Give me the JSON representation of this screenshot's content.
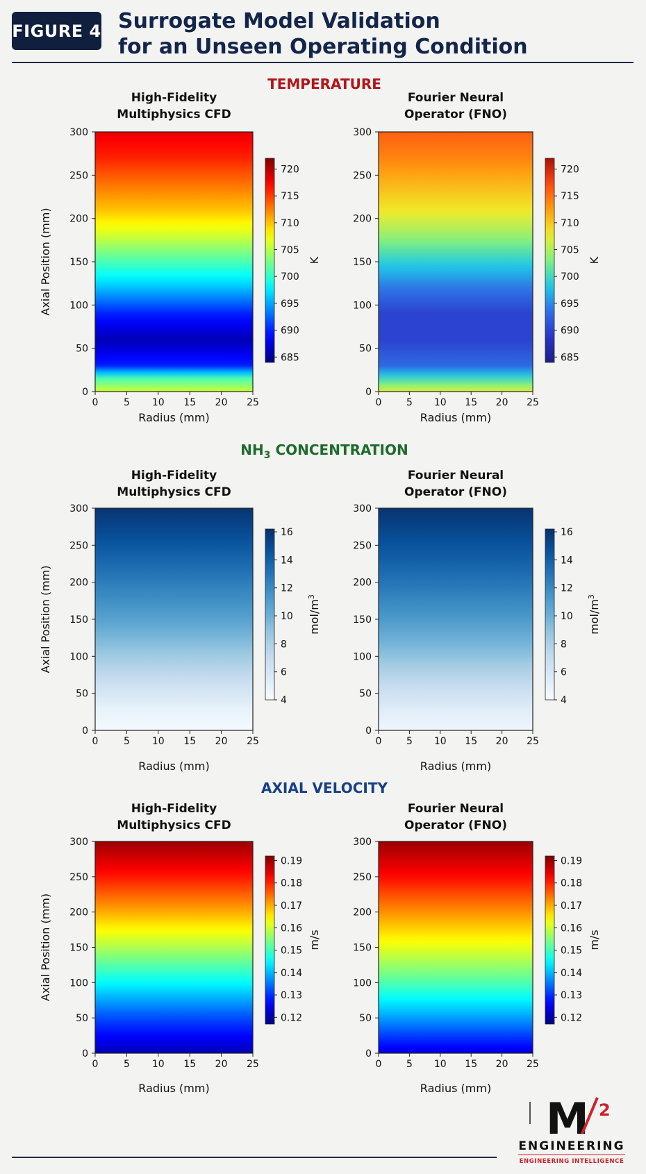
{
  "header": {
    "badge": "FIGURE 4",
    "title_line1": "Surrogate Model Validation",
    "title_line2": "for an Unseen Operating Condition"
  },
  "logo": {
    "mark": "M",
    "superscript": "2",
    "wordmark": "ENGINEERING",
    "tagline": "ENGINEERING INTELLIGENCE",
    "accent": "#d0202a"
  },
  "chart_data": [
    {
      "type": "heatmap",
      "section": "TEMPERATURE",
      "section_color": "#b0151b",
      "title_line1": "High-Fidelity",
      "title_line2": "Multiphysics CFD",
      "xlabel": "Radius (mm)",
      "ylabel": "Axial Position (mm)",
      "xlim": [
        0,
        25
      ],
      "ylim": [
        0,
        300
      ],
      "xticks": [
        0,
        5,
        10,
        15,
        20,
        25
      ],
      "yticks": [
        0,
        50,
        100,
        150,
        200,
        250,
        300
      ],
      "colormap": "jet",
      "colorbar_label": "K",
      "colorbar_range": [
        684,
        722
      ],
      "colorbar_ticks": [
        685,
        690,
        695,
        700,
        705,
        710,
        715,
        720
      ],
      "profile": {
        "axial": [
          0,
          15,
          30,
          60,
          90,
          120,
          150,
          180,
          210,
          240,
          270,
          300
        ],
        "value": [
          706,
          701,
          690,
          686,
          690,
          696,
          701,
          706,
          710,
          713,
          716,
          718
        ]
      }
    },
    {
      "type": "heatmap",
      "section": "TEMPERATURE",
      "title_line1": "Fourier Neural",
      "title_line2": "Operator (FNO)",
      "xlabel": "Radius (mm)",
      "xlim": [
        0,
        25
      ],
      "ylim": [
        0,
        300
      ],
      "xticks": [
        0,
        5,
        10,
        15,
        20,
        25
      ],
      "yticks": [
        0,
        50,
        100,
        150,
        200,
        250,
        300
      ],
      "colormap": "jet-muted",
      "colorbar_label": "K",
      "colorbar_range": [
        684,
        722
      ],
      "colorbar_ticks": [
        685,
        690,
        695,
        700,
        705,
        710,
        715,
        720
      ],
      "profile": {
        "axial": [
          0,
          15,
          30,
          60,
          90,
          120,
          150,
          180,
          210,
          240,
          270,
          300
        ],
        "value": [
          707,
          700,
          693,
          690,
          690,
          694,
          699,
          704,
          708,
          711,
          714,
          716
        ]
      }
    },
    {
      "type": "heatmap",
      "section": "NH3 CONCENTRATION",
      "section_prefix": "NH",
      "section_sub": "3",
      "section_suffix": " CONCENTRATION",
      "section_color": "#1e6b2c",
      "title_line1": "High-Fidelity",
      "title_line2": "Multiphysics CFD",
      "xlabel": "Radius (mm)",
      "ylabel": "Axial Position (mm)",
      "xlim": [
        0,
        25
      ],
      "ylim": [
        0,
        300
      ],
      "xticks": [
        0,
        5,
        10,
        15,
        20,
        25
      ],
      "yticks": [
        0,
        50,
        100,
        150,
        200,
        250,
        300
      ],
      "colormap": "blues",
      "colorbar_label_base": "mol/m",
      "colorbar_label_sup": "3",
      "colorbar_range": [
        4,
        16.2
      ],
      "colorbar_ticks": [
        4,
        6,
        8,
        10,
        12,
        14,
        16
      ],
      "profile": {
        "axial": [
          0,
          30,
          60,
          100,
          150,
          200,
          250,
          300
        ],
        "value": [
          4.2,
          5.0,
          6.5,
          8.5,
          10.8,
          12.6,
          14.4,
          16.0
        ]
      }
    },
    {
      "type": "heatmap",
      "section": "NH3 CONCENTRATION",
      "title_line1": "Fourier Neural",
      "title_line2": "Operator (FNO)",
      "xlabel": "Radius (mm)",
      "xlim": [
        0,
        25
      ],
      "ylim": [
        0,
        300
      ],
      "xticks": [
        0,
        5,
        10,
        15,
        20,
        25
      ],
      "yticks": [
        0,
        50,
        100,
        150,
        200,
        250,
        300
      ],
      "colormap": "blues",
      "colorbar_label_base": "mol/m",
      "colorbar_label_sup": "3",
      "colorbar_range": [
        4,
        16.2
      ],
      "colorbar_ticks": [
        4,
        6,
        8,
        10,
        12,
        14,
        16
      ],
      "profile": {
        "axial": [
          0,
          30,
          60,
          100,
          150,
          200,
          250,
          300
        ],
        "value": [
          4.5,
          5.5,
          7.0,
          9.0,
          11.2,
          13.0,
          14.6,
          16.0
        ]
      }
    },
    {
      "type": "heatmap",
      "section": "AXIAL VELOCITY",
      "section_color": "#173f86",
      "title_line1": "High-Fidelity",
      "title_line2": "Multiphysics CFD",
      "xlabel": "Radius (mm)",
      "ylabel": "Axial Position (mm)",
      "xlim": [
        0,
        25
      ],
      "ylim": [
        0,
        300
      ],
      "xticks": [
        0,
        5,
        10,
        15,
        20,
        25
      ],
      "yticks": [
        0,
        50,
        100,
        150,
        200,
        250,
        300
      ],
      "colormap": "jet",
      "colorbar_label": "m/s",
      "colorbar_range": [
        0.117,
        0.192
      ],
      "colorbar_ticks": [
        0.12,
        0.13,
        0.14,
        0.15,
        0.16,
        0.17,
        0.18,
        0.19
      ],
      "colorbar_tick_labels": [
        "0.12",
        "0.13",
        "0.14",
        "0.15",
        "0.16",
        "0.17",
        "0.18",
        "0.19"
      ],
      "profile": {
        "axial": [
          0,
          50,
          100,
          150,
          200,
          250,
          300
        ],
        "value": [
          0.121,
          0.132,
          0.145,
          0.158,
          0.17,
          0.181,
          0.19
        ]
      }
    },
    {
      "type": "heatmap",
      "section": "AXIAL VELOCITY",
      "title_line1": "Fourier Neural",
      "title_line2": "Operator (FNO)",
      "xlabel": "Radius (mm)",
      "xlim": [
        0,
        25
      ],
      "ylim": [
        0,
        300
      ],
      "xticks": [
        0,
        5,
        10,
        15,
        20,
        25
      ],
      "yticks": [
        0,
        50,
        100,
        150,
        200,
        250,
        300
      ],
      "colormap": "jet",
      "colorbar_label": "m/s",
      "colorbar_range": [
        0.117,
        0.192
      ],
      "colorbar_ticks": [
        0.12,
        0.13,
        0.14,
        0.15,
        0.16,
        0.17,
        0.18,
        0.19
      ],
      "colorbar_tick_labels": [
        "0.12",
        "0.13",
        "0.14",
        "0.15",
        "0.16",
        "0.17",
        "0.18",
        "0.19"
      ],
      "profile": {
        "axial": [
          0,
          50,
          100,
          150,
          200,
          250,
          300
        ],
        "value": [
          0.124,
          0.138,
          0.151,
          0.162,
          0.172,
          0.182,
          0.19
        ]
      }
    }
  ]
}
